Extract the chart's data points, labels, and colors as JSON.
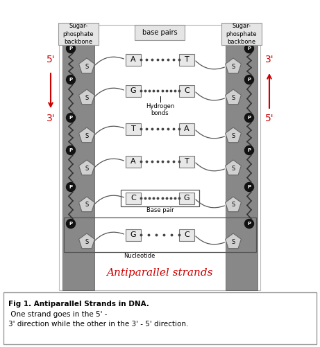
{
  "title": "Antiparallel strands",
  "title_color": "#cc0000",
  "background_color": "#ffffff",
  "backbone_color": "#888888",
  "sugar_fill": "#d0d0d0",
  "phosphate_fill": "#111111",
  "base_box_bg": "#e8e8e8",
  "caption_bold": "Fig 1. Antiparallel Strands in DNA.",
  "caption_normal": " One strand goes in the 5' -\n3' direction while the other in the 3' - 5' direction.",
  "bp_pairs": [
    {
      "left": "A",
      "right": "T",
      "ndots": 8
    },
    {
      "left": "G",
      "right": "C",
      "ndots": 10,
      "annotation": "Hydrogen bonds"
    },
    {
      "left": "T",
      "right": "A",
      "ndots": 8
    },
    {
      "left": "A",
      "right": "T",
      "ndots": 8
    },
    {
      "left": "C",
      "right": "G",
      "ndots": 10,
      "annotation": "Base pair"
    },
    {
      "left": "G",
      "right": "C",
      "ndots": 6,
      "annotation": "Nucleotide"
    }
  ],
  "left_arrow_label_top": "5'",
  "left_arrow_label_bot": "3'",
  "right_arrow_label_top": "3'",
  "right_arrow_label_bot": "5'",
  "header_left": "Sugar-\nphosphate\nbackbone",
  "header_center": "base pairs",
  "header_right": "Sugar-\nphosphate\nbackbone"
}
